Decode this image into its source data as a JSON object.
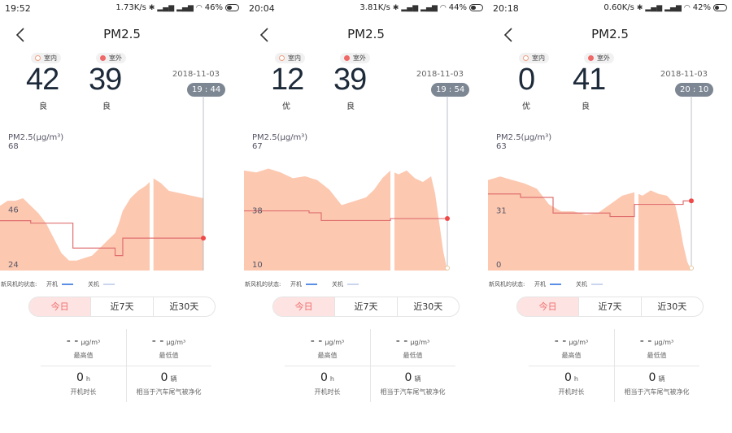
{
  "common": {
    "title": "PM2.5",
    "indoor_label": "室内",
    "outdoor_label": "室外",
    "date": "2018-11-03",
    "chart_ylabel": "PM2.5(μg/m³)",
    "fan_status_label": "新风机的状态:",
    "fan_on_label": "开机",
    "fan_off_label": "关机",
    "tabs": [
      "今日",
      "近7天",
      "近30天"
    ],
    "stats": [
      {
        "value": "- -",
        "unit": "μg/m³",
        "label": "最高值"
      },
      {
        "value": "- -",
        "unit": "μg/m³",
        "label": "最低值"
      },
      {
        "value": "0",
        "unit": "h",
        "label": "开机时长"
      },
      {
        "value": "0",
        "unit": "辆",
        "label": "相当于汽车尾气被净化"
      }
    ],
    "colors": {
      "area": "#fcc8b0",
      "outdoor_line": "#e07070",
      "marker": "#f04848",
      "active_tab_bg": "#fde3e1",
      "active_tab_text": "#f06e6e",
      "fan_on": "#5b8fe6",
      "fan_off": "#c9d6ee"
    }
  },
  "screens": [
    {
      "status": {
        "time": "19:52",
        "speed": "1.73K/s",
        "battery": "46%",
        "battery_level": 0.46
      },
      "indoor": {
        "value": "42",
        "grade": "良"
      },
      "outdoor": {
        "value": "39",
        "grade": "良"
      },
      "time_pill": "19 : 44",
      "chart_top": "68",
      "y_tick_upper": "46",
      "y_tick_lower": "24",
      "chart_data": {
        "type": "area",
        "ylim": [
          24,
          68
        ],
        "yticks": [
          46,
          24
        ],
        "indoor_area": [
          [
            0,
            50
          ],
          [
            2,
            52
          ],
          [
            4,
            52
          ],
          [
            6,
            53
          ],
          [
            8,
            50
          ],
          [
            10,
            47
          ],
          [
            12,
            43
          ],
          [
            14,
            37
          ],
          [
            16,
            31
          ],
          [
            18,
            28
          ],
          [
            20,
            28
          ],
          [
            22,
            29
          ],
          [
            24,
            30
          ],
          [
            26,
            33
          ],
          [
            28,
            36
          ],
          [
            30,
            39
          ],
          [
            31,
            43
          ],
          [
            32,
            48
          ],
          [
            34,
            53
          ],
          [
            36,
            56
          ],
          [
            38,
            58
          ],
          [
            40,
            61
          ],
          [
            42,
            59
          ],
          [
            44,
            56
          ],
          [
            47,
            55
          ],
          [
            50,
            54
          ],
          [
            53,
            53
          ]
        ],
        "outdoor_line": [
          [
            0,
            44
          ],
          [
            8,
            44
          ],
          [
            8,
            43
          ],
          [
            19,
            43
          ],
          [
            19,
            33
          ],
          [
            30,
            33
          ],
          [
            30,
            30
          ],
          [
            32,
            30
          ],
          [
            32,
            37
          ],
          [
            53,
            37
          ]
        ],
        "gap": [
          39,
          40
        ],
        "marker": [
          53,
          37
        ]
      }
    },
    {
      "status": {
        "time": "20:04",
        "speed": "3.81K/s",
        "battery": "44%",
        "battery_level": 0.44
      },
      "indoor": {
        "value": "12",
        "grade": "优"
      },
      "outdoor": {
        "value": "39",
        "grade": "良"
      },
      "time_pill": "19 : 54",
      "chart_top": "67",
      "y_tick_upper": "38",
      "y_tick_lower": "10",
      "chart_data": {
        "type": "area",
        "ylim": [
          10,
          67
        ],
        "yticks": [
          38,
          10
        ],
        "indoor_area": [
          [
            0,
            62
          ],
          [
            3,
            61
          ],
          [
            6,
            63
          ],
          [
            9,
            61
          ],
          [
            12,
            58
          ],
          [
            15,
            59
          ],
          [
            18,
            57
          ],
          [
            21,
            52
          ],
          [
            24,
            44
          ],
          [
            27,
            46
          ],
          [
            30,
            48
          ],
          [
            32,
            52
          ],
          [
            34,
            58
          ],
          [
            36,
            62
          ],
          [
            38,
            60
          ],
          [
            40,
            62
          ],
          [
            42,
            58
          ],
          [
            44,
            56
          ],
          [
            46,
            59
          ],
          [
            47,
            50
          ],
          [
            48,
            35
          ],
          [
            49,
            20
          ],
          [
            50,
            10
          ]
        ],
        "outdoor_line": [
          [
            0,
            41
          ],
          [
            16,
            41
          ],
          [
            16,
            40
          ],
          [
            19,
            40
          ],
          [
            19,
            36
          ],
          [
            36,
            36
          ],
          [
            36,
            37
          ],
          [
            50,
            37
          ]
        ],
        "gap": [
          36,
          37
        ],
        "marker": [
          50,
          37
        ],
        "end_point": [
          50,
          10
        ]
      }
    },
    {
      "status": {
        "time": "20:18",
        "speed": "0.60K/s",
        "battery": "42%",
        "battery_level": 0.42
      },
      "indoor": {
        "value": "0",
        "grade": "优"
      },
      "outdoor": {
        "value": "41",
        "grade": "良"
      },
      "time_pill": "20 : 10",
      "chart_top": "63",
      "y_tick_upper": "31",
      "y_tick_lower": "0",
      "chart_data": {
        "type": "area",
        "ylim": [
          0,
          63
        ],
        "yticks": [
          31,
          0
        ],
        "indoor_area": [
          [
            0,
            52
          ],
          [
            3,
            54
          ],
          [
            6,
            52
          ],
          [
            9,
            50
          ],
          [
            12,
            47
          ],
          [
            15,
            38
          ],
          [
            18,
            34
          ],
          [
            21,
            34
          ],
          [
            24,
            32
          ],
          [
            27,
            33
          ],
          [
            30,
            38
          ],
          [
            33,
            43
          ],
          [
            36,
            45
          ],
          [
            38,
            43
          ],
          [
            40,
            46
          ],
          [
            42,
            44
          ],
          [
            44,
            43
          ],
          [
            46,
            38
          ],
          [
            47,
            28
          ],
          [
            48,
            15
          ],
          [
            49,
            5
          ],
          [
            50,
            0
          ]
        ],
        "outdoor_line": [
          [
            0,
            44
          ],
          [
            8,
            44
          ],
          [
            8,
            42
          ],
          [
            16,
            42
          ],
          [
            16,
            33
          ],
          [
            30,
            33
          ],
          [
            30,
            31
          ],
          [
            36,
            31
          ],
          [
            36,
            38
          ],
          [
            48,
            38
          ],
          [
            48,
            40
          ],
          [
            50,
            40
          ]
        ],
        "gap": [
          36,
          37
        ],
        "marker": [
          50,
          40
        ],
        "end_point": [
          50,
          0
        ]
      }
    }
  ]
}
